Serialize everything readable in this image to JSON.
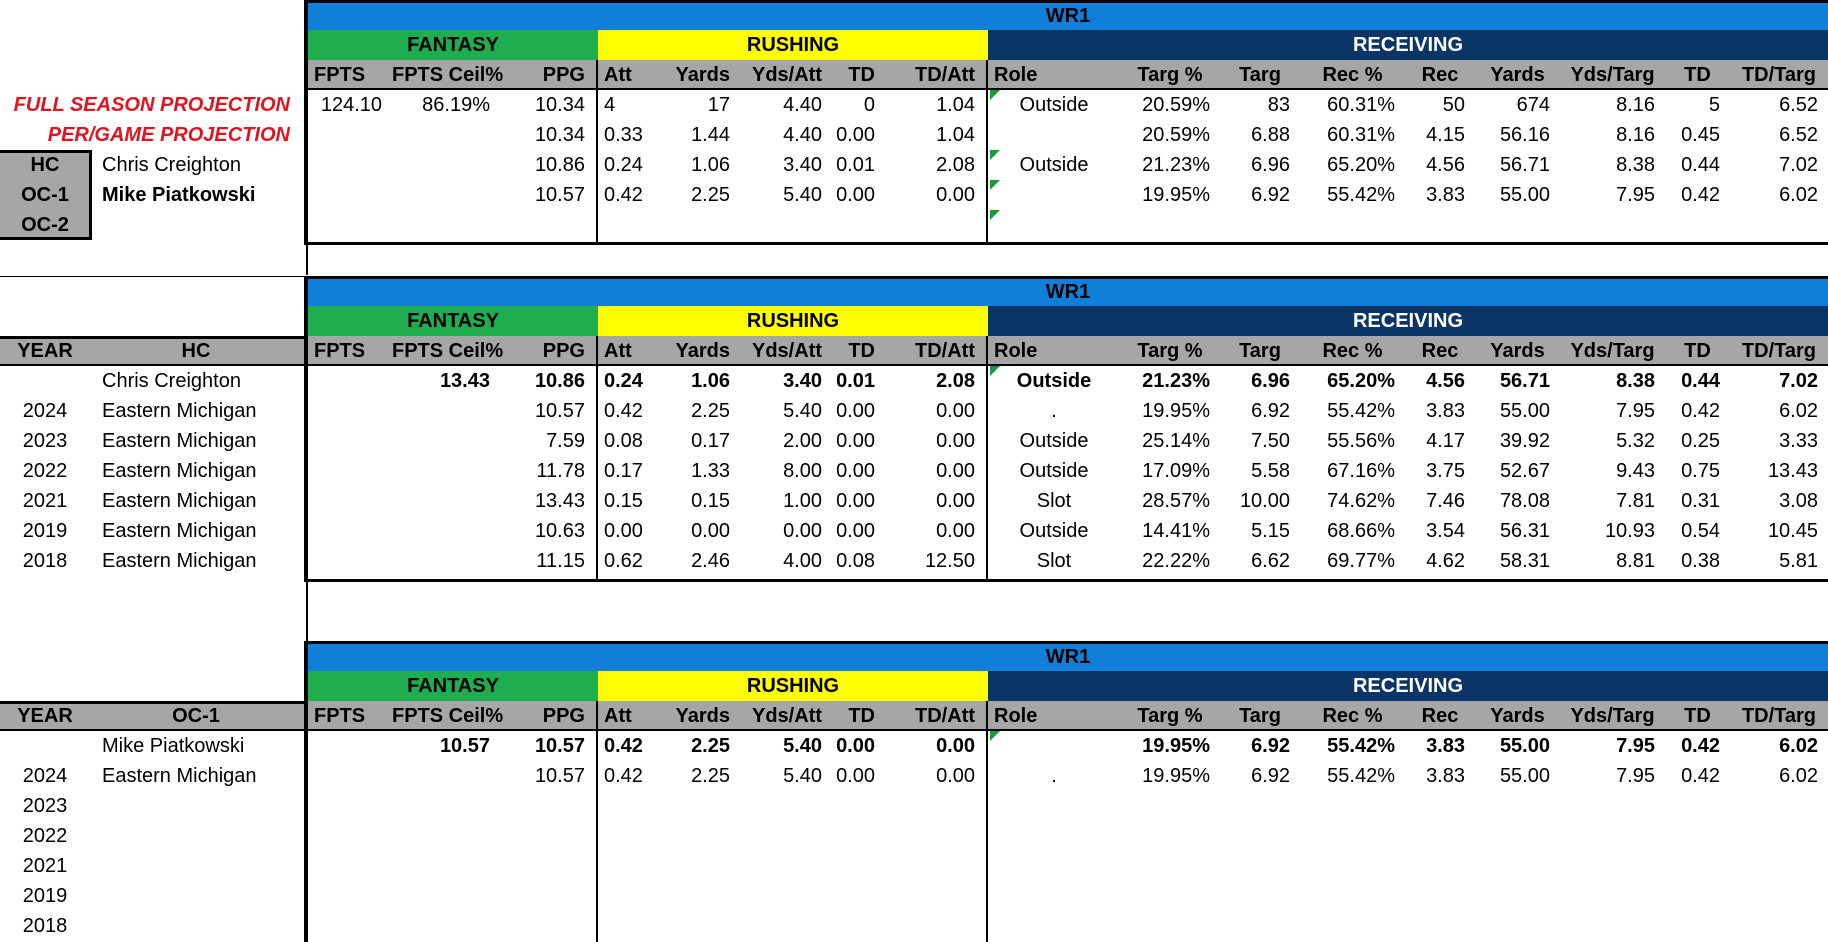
{
  "headers": {
    "wr": "WR1",
    "fantasy": "FANTASY",
    "rushing": "RUSHING",
    "receiving": "RECEIVING",
    "cols": [
      "FPTS",
      "FPTS Ceil%",
      "PPG",
      "Att",
      "Yards",
      "Yds/Att",
      "TD",
      "TD/Att",
      "Role",
      "Targ %",
      "Targ",
      "Rec %",
      "Rec",
      "Yards",
      "Yds/Targ",
      "TD",
      "TD/Targ"
    ]
  },
  "section1": {
    "labels": {
      "full": "FULL SEASON PROJECTION",
      "pergame": "PER/GAME PROJECTION"
    },
    "roles": [
      "HC",
      "OC-1",
      "OC-2"
    ],
    "names": [
      "Chris Creighton",
      "Mike Piatkowski",
      ""
    ],
    "rows": [
      [
        "124.10",
        "86.19%",
        "10.34",
        "4",
        "17",
        "4.40",
        "0",
        "1.04",
        "Outside",
        "20.59%",
        "83",
        "60.31%",
        "50",
        "674",
        "8.16",
        "5",
        "6.52"
      ],
      [
        "",
        "",
        "10.34",
        "0.33",
        "1.44",
        "4.40",
        "0.00",
        "1.04",
        "",
        "20.59%",
        "6.88",
        "60.31%",
        "4.15",
        "56.16",
        "8.16",
        "0.45",
        "6.52"
      ],
      [
        "",
        "",
        "10.86",
        "0.24",
        "1.06",
        "3.40",
        "0.01",
        "2.08",
        "Outside",
        "21.23%",
        "6.96",
        "65.20%",
        "4.56",
        "56.71",
        "8.38",
        "0.44",
        "7.02"
      ],
      [
        "",
        "",
        "10.57",
        "0.42",
        "2.25",
        "5.40",
        "0.00",
        "0.00",
        "",
        "19.95%",
        "6.92",
        "55.42%",
        "3.83",
        "55.00",
        "7.95",
        "0.42",
        "6.02"
      ]
    ]
  },
  "section2": {
    "left_headers": {
      "year": "YEAR",
      "role": "HC"
    },
    "rows": [
      {
        "year": "",
        "team": "Chris Creighton",
        "v": [
          "",
          "13.43",
          "10.86",
          "0.24",
          "1.06",
          "3.40",
          "0.01",
          "2.08",
          "Outside",
          "21.23%",
          "6.96",
          "65.20%",
          "4.56",
          "56.71",
          "8.38",
          "0.44",
          "7.02"
        ]
      },
      {
        "year": "2024",
        "team": "Eastern Michigan",
        "v": [
          "",
          "",
          "10.57",
          "0.42",
          "2.25",
          "5.40",
          "0.00",
          "0.00",
          ".",
          "19.95%",
          "6.92",
          "55.42%",
          "3.83",
          "55.00",
          "7.95",
          "0.42",
          "6.02"
        ]
      },
      {
        "year": "2023",
        "team": "Eastern Michigan",
        "v": [
          "",
          "",
          "7.59",
          "0.08",
          "0.17",
          "2.00",
          "0.00",
          "0.00",
          "Outside",
          "25.14%",
          "7.50",
          "55.56%",
          "4.17",
          "39.92",
          "5.32",
          "0.25",
          "3.33"
        ]
      },
      {
        "year": "2022",
        "team": "Eastern Michigan",
        "v": [
          "",
          "",
          "11.78",
          "0.17",
          "1.33",
          "8.00",
          "0.00",
          "0.00",
          "Outside",
          "17.09%",
          "5.58",
          "67.16%",
          "3.75",
          "52.67",
          "9.43",
          "0.75",
          "13.43"
        ]
      },
      {
        "year": "2021",
        "team": "Eastern Michigan",
        "v": [
          "",
          "",
          "13.43",
          "0.15",
          "0.15",
          "1.00",
          "0.00",
          "0.00",
          "Slot",
          "28.57%",
          "10.00",
          "74.62%",
          "7.46",
          "78.08",
          "7.81",
          "0.31",
          "3.08"
        ]
      },
      {
        "year": "2019",
        "team": "Eastern Michigan",
        "v": [
          "",
          "",
          "10.63",
          "0.00",
          "0.00",
          "0.00",
          "0.00",
          "0.00",
          "Outside",
          "14.41%",
          "5.15",
          "68.66%",
          "3.54",
          "56.31",
          "10.93",
          "0.54",
          "10.45"
        ]
      },
      {
        "year": "2018",
        "team": "Eastern Michigan",
        "v": [
          "",
          "",
          "11.15",
          "0.62",
          "2.46",
          "4.00",
          "0.08",
          "12.50",
          "Slot",
          "22.22%",
          "6.62",
          "69.77%",
          "4.62",
          "58.31",
          "8.81",
          "0.38",
          "5.81"
        ]
      }
    ]
  },
  "section3": {
    "left_headers": {
      "year": "YEAR",
      "role": "OC-1"
    },
    "rows": [
      {
        "year": "",
        "team": "Mike Piatkowski",
        "v": [
          "",
          "10.57",
          "10.57",
          "0.42",
          "2.25",
          "5.40",
          "0.00",
          "0.00",
          "",
          "19.95%",
          "6.92",
          "55.42%",
          "3.83",
          "55.00",
          "7.95",
          "0.42",
          "6.02"
        ]
      },
      {
        "year": "2024",
        "team": "Eastern Michigan",
        "v": [
          "",
          "",
          "10.57",
          "0.42",
          "2.25",
          "5.40",
          "0.00",
          "0.00",
          ".",
          "19.95%",
          "6.92",
          "55.42%",
          "3.83",
          "55.00",
          "7.95",
          "0.42",
          "6.02"
        ]
      },
      {
        "year": "2023",
        "team": "",
        "v": []
      },
      {
        "year": "2022",
        "team": "",
        "v": []
      },
      {
        "year": "2021",
        "team": "",
        "v": []
      },
      {
        "year": "2019",
        "team": "",
        "v": []
      },
      {
        "year": "2018",
        "team": "",
        "v": []
      }
    ]
  }
}
